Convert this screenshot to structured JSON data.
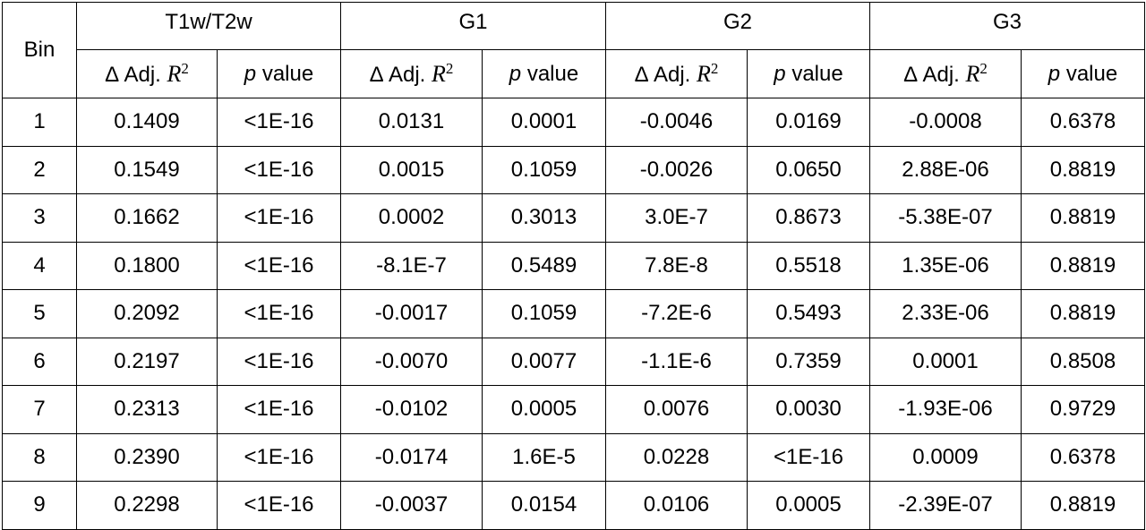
{
  "table": {
    "bin_header": "Bin",
    "groups": [
      "T1w/T2w",
      "G1",
      "G2",
      "G3"
    ],
    "subheaders": {
      "r2": {
        "prefix": "Δ Adj.",
        "var": "R",
        "exp": "2"
      },
      "p": {
        "var": "p",
        "suffix": "value"
      }
    },
    "rows": [
      [
        "1",
        "0.1409",
        "<1E-16",
        "0.0131",
        "0.0001",
        "-0.0046",
        "0.0169",
        "-0.0008",
        "0.6378"
      ],
      [
        "2",
        "0.1549",
        "<1E-16",
        "0.0015",
        "0.1059",
        "-0.0026",
        "0.0650",
        "2.88E-06",
        "0.8819"
      ],
      [
        "3",
        "0.1662",
        "<1E-16",
        "0.0002",
        "0.3013",
        "3.0E-7",
        "0.8673",
        "-5.38E-07",
        "0.8819"
      ],
      [
        "4",
        "0.1800",
        "<1E-16",
        "-8.1E-7",
        "0.5489",
        "7.8E-8",
        "0.5518",
        "1.35E-06",
        "0.8819"
      ],
      [
        "5",
        "0.2092",
        "<1E-16",
        "-0.0017",
        "0.1059",
        "-7.2E-6",
        "0.5493",
        "2.33E-06",
        "0.8819"
      ],
      [
        "6",
        "0.2197",
        "<1E-16",
        "-0.0070",
        "0.0077",
        "-1.1E-6",
        "0.7359",
        "0.0001",
        "0.8508"
      ],
      [
        "7",
        "0.2313",
        "<1E-16",
        "-0.0102",
        "0.0005",
        "0.0076",
        "0.0030",
        "-1.93E-06",
        "0.9729"
      ],
      [
        "8",
        "0.2390",
        "<1E-16",
        "-0.0174",
        "1.6E-5",
        "0.0228",
        "<1E-16",
        "0.0009",
        "0.6378"
      ],
      [
        "9",
        "0.2298",
        "<1E-16",
        "-0.0037",
        "0.0154",
        "0.0106",
        "0.0005",
        "-2.39E-07",
        "0.8819"
      ]
    ]
  }
}
